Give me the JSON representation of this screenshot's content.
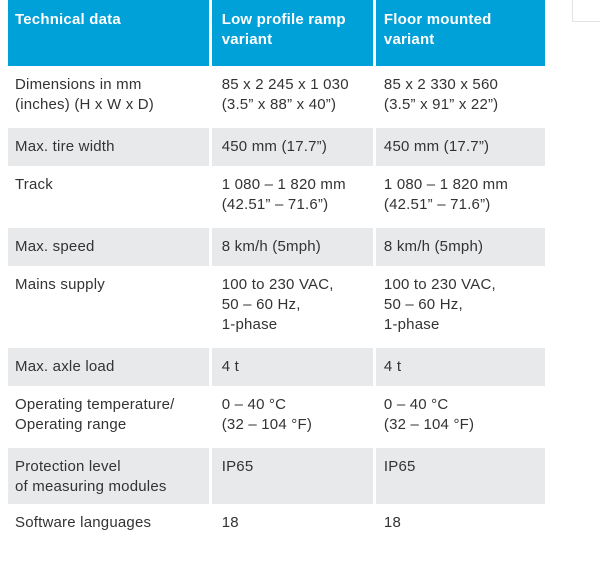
{
  "header": [
    "Technical data",
    "Low profile ramp variant",
    "Floor mounted variant"
  ],
  "header_lines": [
    [
      "Technical data"
    ],
    [
      "Low profile ramp",
      "variant"
    ],
    [
      "Floor mounted",
      "variant"
    ]
  ],
  "rows": [
    {
      "label": [
        "Dimensions in mm",
        "(inches) (H x W x D)"
      ],
      "low": [
        "85 x 2 245 x 1 030",
        "(3.5” x 88” x 40”)"
      ],
      "floor": [
        "85 x 2 330 x 560",
        "(3.5” x 91” x 22”)"
      ],
      "shaded": false
    },
    {
      "label": [
        "Max. tire width"
      ],
      "low": [
        "450 mm (17.7”)"
      ],
      "floor": [
        "450 mm (17.7”)"
      ],
      "shaded": true
    },
    {
      "label": [
        "Track"
      ],
      "low": [
        "1 080 – 1 820 mm",
        "(42.51” – 71.6”)"
      ],
      "floor": [
        "1 080 – 1 820 mm",
        "(42.51” – 71.6”)"
      ],
      "shaded": false
    },
    {
      "label": [
        "Max. speed"
      ],
      "low": [
        "8 km/h (5mph)"
      ],
      "floor": [
        "8 km/h (5mph)"
      ],
      "shaded": true
    },
    {
      "label": [
        "Mains supply"
      ],
      "low": [
        "100 to 230 VAC,",
        "50 – 60 Hz,",
        "1-phase"
      ],
      "floor": [
        "100 to 230 VAC,",
        "50 – 60 Hz,",
        "1-phase"
      ],
      "shaded": false
    },
    {
      "label": [
        "Max. axle load"
      ],
      "low": [
        "4 t"
      ],
      "floor": [
        "4 t"
      ],
      "shaded": true
    },
    {
      "label": [
        "Operating temperature/",
        "Operating range"
      ],
      "low": [
        "0 – 40 °C",
        "(32 – 104 °F)"
      ],
      "floor": [
        "0 – 40 °C",
        "(32 – 104 °F)"
      ],
      "shaded": false
    },
    {
      "label": [
        "Protection level",
        "of measuring modules"
      ],
      "low": [
        "IP65"
      ],
      "floor": [
        "IP65"
      ],
      "shaded": true
    },
    {
      "label": [
        "Software languages"
      ],
      "low": [
        "18"
      ],
      "floor": [
        "18"
      ],
      "shaded": false
    }
  ]
}
